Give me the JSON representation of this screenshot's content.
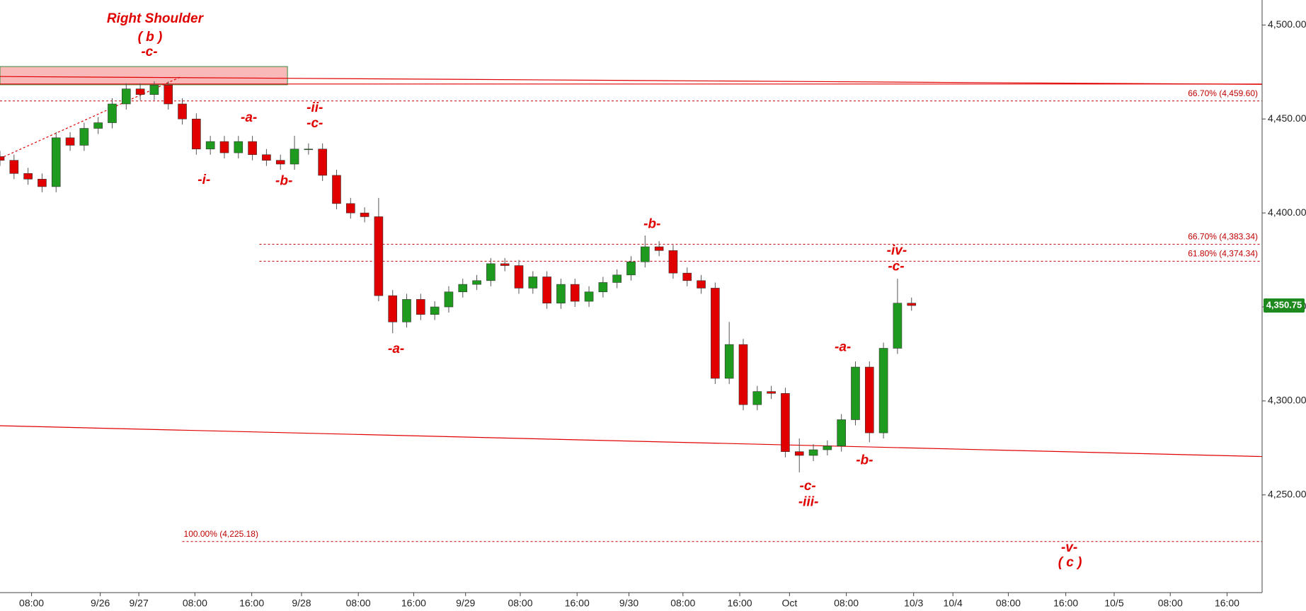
{
  "chart_data": {
    "type": "candlestick",
    "x": [
      0,
      2,
      4,
      6,
      8,
      10,
      12,
      14,
      16,
      18,
      20,
      22,
      24,
      26,
      28,
      30,
      32,
      34,
      36,
      38,
      40,
      42,
      44,
      46,
      48,
      50,
      52,
      54,
      56,
      58,
      60,
      62,
      64,
      66,
      68,
      70,
      72,
      74,
      76,
      78,
      80,
      82,
      84,
      86,
      88,
      90,
      92,
      94,
      96,
      98,
      100,
      102,
      104,
      106,
      108,
      110,
      112,
      114,
      116,
      118,
      120,
      122,
      124,
      126,
      128,
      130
    ],
    "open": [
      4430,
      4428,
      4421,
      4418,
      4414,
      4440,
      4436,
      4445,
      4448,
      4458,
      4466,
      4463,
      4468,
      4458,
      4450,
      4434,
      4438,
      4432,
      4438,
      4431,
      4428,
      4426,
      4434,
      4434,
      4420,
      4405,
      4400,
      4398,
      4356,
      4342,
      4354,
      4346,
      4350,
      4358,
      4362,
      4364,
      4373,
      4372,
      4360,
      4366,
      4352,
      4362,
      4353,
      4358,
      4363,
      4367,
      4374,
      4382,
      4380,
      4368,
      4364,
      4360,
      4312,
      4330,
      4298,
      4305,
      4304,
      4273,
      4271,
      4274,
      4276,
      4290,
      4318,
      4283,
      4328,
      4352
    ],
    "high": [
      4433,
      4431,
      4424,
      4421,
      4443,
      4443,
      4448,
      4451,
      4461,
      4469,
      4469,
      4470,
      4470,
      4461,
      4453,
      4441,
      4441,
      4441,
      4441,
      4434,
      4431,
      4441,
      4437,
      4437,
      4423,
      4408,
      4403,
      4408,
      4359,
      4357,
      4357,
      4353,
      4361,
      4365,
      4367,
      4376,
      4376,
      4375,
      4369,
      4369,
      4365,
      4365,
      4361,
      4366,
      4370,
      4377,
      4388,
      4385,
      4383,
      4371,
      4367,
      4363,
      4342,
      4333,
      4308,
      4308,
      4307,
      4280,
      4277,
      4279,
      4293,
      4321,
      4321,
      4331,
      4365,
      4355
    ],
    "low": [
      4425,
      4418,
      4415,
      4411,
      4411,
      4433,
      4433,
      4442,
      4445,
      4455,
      4460,
      4460,
      4455,
      4447,
      4431,
      4431,
      4429,
      4429,
      4428,
      4425,
      4423,
      4423,
      4431,
      4417,
      4402,
      4397,
      4395,
      4353,
      4336,
      4339,
      4343,
      4343,
      4347,
      4355,
      4359,
      4361,
      4369,
      4357,
      4357,
      4349,
      4349,
      4350,
      4350,
      4355,
      4360,
      4364,
      4371,
      4377,
      4365,
      4361,
      4357,
      4309,
      4309,
      4295,
      4295,
      4301,
      4270,
      4262,
      4268,
      4271,
      4273,
      4287,
      4278,
      4280,
      4325,
      4348
    ],
    "close": [
      4428,
      4421,
      4418,
      4414,
      4440,
      4436,
      4445,
      4448,
      4458,
      4466,
      4463,
      4468,
      4458,
      4450,
      4434,
      4438,
      4432,
      4438,
      4431,
      4428,
      4426,
      4434,
      4434,
      4420,
      4405,
      4400,
      4398,
      4356,
      4342,
      4354,
      4346,
      4350,
      4358,
      4362,
      4364,
      4373,
      4372,
      4360,
      4366,
      4352,
      4362,
      4353,
      4358,
      4363,
      4367,
      4374,
      4382,
      4380,
      4368,
      4364,
      4360,
      4312,
      4330,
      4298,
      4305,
      4304,
      4273,
      4271,
      4274,
      4276,
      4290,
      4318,
      4283,
      4328,
      4352,
      4350.75
    ],
    "up_color": "#1e9a1e",
    "down_color": "#e00000",
    "xlim": [
      0,
      180
    ],
    "ylim": [
      4198,
      4513.3
    ],
    "yticks": [
      {
        "value": 4250,
        "label": "4,250.00"
      },
      {
        "value": 4300,
        "label": "4,300.00"
      },
      {
        "value": 4350,
        "label": "4,350.00"
      },
      {
        "value": 4400,
        "label": "4,400.00"
      },
      {
        "value": 4450,
        "label": "4,450.00"
      },
      {
        "value": 4500,
        "label": "4,500.00"
      }
    ],
    "xticks": [
      {
        "value": 4.5,
        "label": "08:00"
      },
      {
        "value": 14.3,
        "label": "9/26"
      },
      {
        "value": 19.8,
        "label": "9/27"
      },
      {
        "value": 27.8,
        "label": "08:00"
      },
      {
        "value": 35.9,
        "label": "16:00"
      },
      {
        "value": 43,
        "label": "9/28"
      },
      {
        "value": 51.1,
        "label": "08:00"
      },
      {
        "value": 59,
        "label": "16:00"
      },
      {
        "value": 66.4,
        "label": "9/29"
      },
      {
        "value": 74.2,
        "label": "08:00"
      },
      {
        "value": 82.3,
        "label": "16:00"
      },
      {
        "value": 89.7,
        "label": "9/30"
      },
      {
        "value": 97.4,
        "label": "08:00"
      },
      {
        "value": 105.5,
        "label": "16:00"
      },
      {
        "value": 112.6,
        "label": "Oct"
      },
      {
        "value": 120.7,
        "label": "08:00"
      },
      {
        "value": 130.3,
        "label": "10/3"
      },
      {
        "value": 135.9,
        "label": "10/4"
      },
      {
        "value": 143.8,
        "label": "08:00"
      },
      {
        "value": 152,
        "label": "16:00"
      },
      {
        "value": 158.9,
        "label": "10/5"
      },
      {
        "value": 166.9,
        "label": "08:00"
      },
      {
        "value": 175,
        "label": "16:00"
      }
    ],
    "last_price": {
      "value": 4350.75,
      "label": "4,350.75"
    },
    "fib_levels": [
      {
        "label": "66.70% (4,459.60)",
        "value": 4459.6,
        "start": 0
      },
      {
        "label": "66.70% (4,383.34)",
        "value": 4383.34,
        "start": 37
      },
      {
        "label": "61.80% (4,374.34)",
        "value": 4374.34,
        "start": 37
      },
      {
        "label": "100.00% (4,225.18)",
        "value": 4225.18,
        "start": 26
      }
    ],
    "trendlines": [
      {
        "x": [
          0,
          180
        ],
        "y": [
          4468.6,
          4468.6
        ]
      },
      {
        "x": [
          0,
          180
        ],
        "y": [
          4472.6,
          4468.4
        ]
      },
      {
        "x": [
          0,
          180
        ],
        "y": [
          4286.8,
          4270.4
        ]
      },
      {
        "x": [
          0,
          25.9
        ],
        "y": [
          4429,
          4472.6
        ],
        "dashed": true
      }
    ],
    "zone": {
      "x": [
        0,
        41
      ],
      "y": [
        4468.2,
        4477.9
      ]
    },
    "annotations": [
      {
        "text": "Right Shoulder",
        "x": 22.1,
        "y": 4503.1
      },
      {
        "text": "( b )",
        "x": 21.4,
        "y": 4493.4
      },
      {
        "text": "-c-",
        "x": 21.3,
        "y": 4485.4
      },
      {
        "text": "-a-",
        "x": 35.5,
        "y": 4450.5
      },
      {
        "text": "-ii-",
        "x": 44.9,
        "y": 4455.8
      },
      {
        "text": "-c-",
        "x": 44.9,
        "y": 4447.4
      },
      {
        "text": "-i-",
        "x": 29.1,
        "y": 4417.3
      },
      {
        "text": "-b-",
        "x": 40.5,
        "y": 4416.8
      },
      {
        "text": "-a-",
        "x": 56.5,
        "y": 4327.4
      },
      {
        "text": "-b-",
        "x": 93,
        "y": 4393.8
      },
      {
        "text": "-iv-",
        "x": 127.9,
        "y": 4379.7
      },
      {
        "text": "-c-",
        "x": 127.8,
        "y": 4371.3
      },
      {
        "text": "-a-",
        "x": 120.2,
        "y": 4328.3
      },
      {
        "text": "-b-",
        "x": 123.3,
        "y": 4268.2
      },
      {
        "text": "-c-",
        "x": 115.2,
        "y": 4254.4
      },
      {
        "text": "-iii-",
        "x": 115.3,
        "y": 4246.0
      },
      {
        "text": "-v-",
        "x": 152.5,
        "y": 4221.7
      },
      {
        "text": "( c )",
        "x": 152.6,
        "y": 4213.8
      }
    ]
  }
}
